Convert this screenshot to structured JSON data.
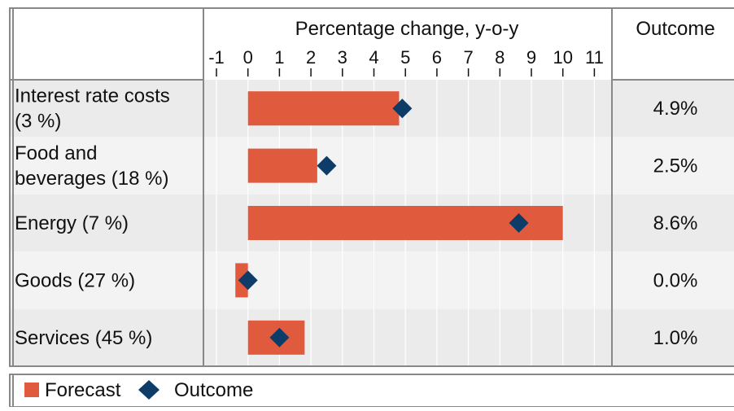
{
  "chart_data": {
    "type": "bar",
    "header": {
      "axis_title": "Percentage change, y-o-y",
      "outcome_title": "Outcome"
    },
    "x_ticks": [
      "-1",
      "0",
      "1",
      "2",
      "3",
      "4",
      "5",
      "6",
      "7",
      "8",
      "9",
      "10",
      "11"
    ],
    "xlim": [
      -1,
      11
    ],
    "categories": [
      {
        "label": "Interest rate costs (3 %)",
        "lines": [
          "Interest rate costs",
          "(3 %)"
        ],
        "forecast": [
          0,
          4.8
        ],
        "outcome": 4.9,
        "outcome_label": "4.9%"
      },
      {
        "label": "Food and beverages (18 %)",
        "lines": [
          "Food and",
          "beverages (18 %)"
        ],
        "forecast": [
          0,
          2.2
        ],
        "outcome": 2.5,
        "outcome_label": "2.5%"
      },
      {
        "label": "Energy (7 %)",
        "lines": [
          "Energy (7 %)"
        ],
        "forecast": [
          0,
          10.0
        ],
        "outcome": 8.6,
        "outcome_label": "8.6%"
      },
      {
        "label": "Goods (27 %)",
        "lines": [
          "Goods (27 %)"
        ],
        "forecast": [
          -0.4,
          0
        ],
        "outcome": 0.0,
        "outcome_label": "0.0%"
      },
      {
        "label": "Services (45 %)",
        "lines": [
          "Services (45 %)"
        ],
        "forecast": [
          0,
          1.8
        ],
        "outcome": 1.0,
        "outcome_label": "1.0%"
      }
    ],
    "series": [
      {
        "name": "Forecast",
        "color": "#e05a3e"
      },
      {
        "name": "Outcome",
        "color": "#0d3c68"
      }
    ],
    "legend_position": "bottom-left"
  }
}
